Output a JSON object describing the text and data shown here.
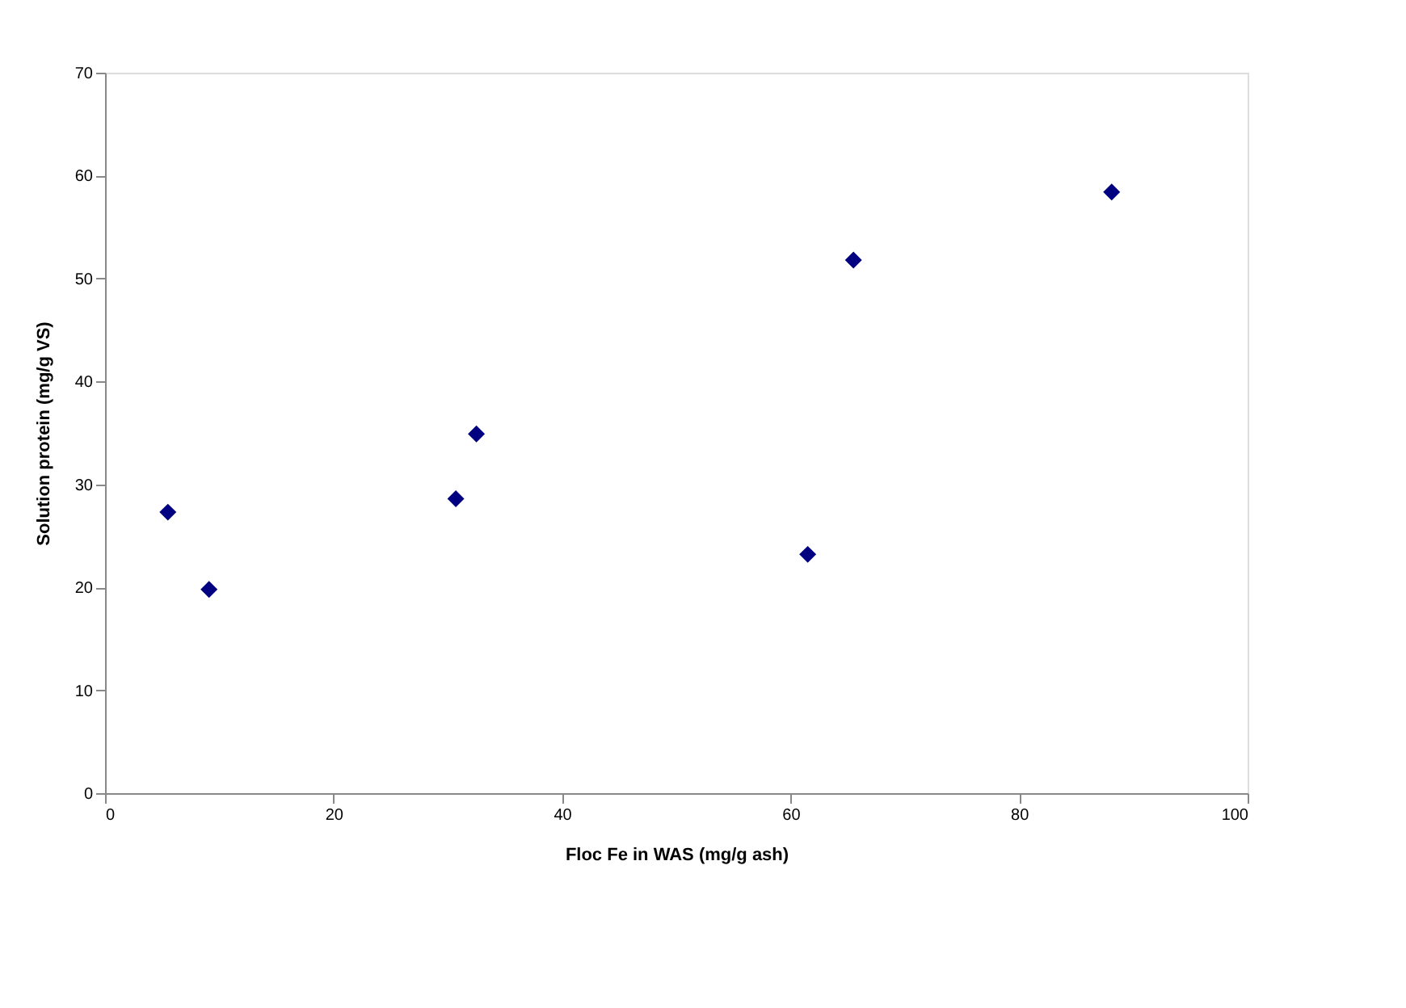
{
  "chart_data": {
    "type": "scatter",
    "xlabel": "Floc Fe in WAS (mg/g ash)",
    "ylabel": "Solution protein (mg/g VS)",
    "x": [
      5.5,
      9.1,
      30.7,
      32.5,
      61.5,
      65.5,
      88.1
    ],
    "series": [
      {
        "color": "#000080",
        "values": [
          27.3,
          19.8,
          28.6,
          34.9,
          23.2,
          51.8,
          58.4
        ]
      }
    ],
    "xlim": [
      0,
      100
    ],
    "xticks": [
      0,
      20,
      40,
      60,
      80,
      100
    ],
    "ylim": [
      0,
      70
    ],
    "yticks": [
      0,
      10,
      20,
      30,
      40,
      50,
      60,
      70
    ],
    "marker": "diamond",
    "grid": false,
    "legend": false
  }
}
